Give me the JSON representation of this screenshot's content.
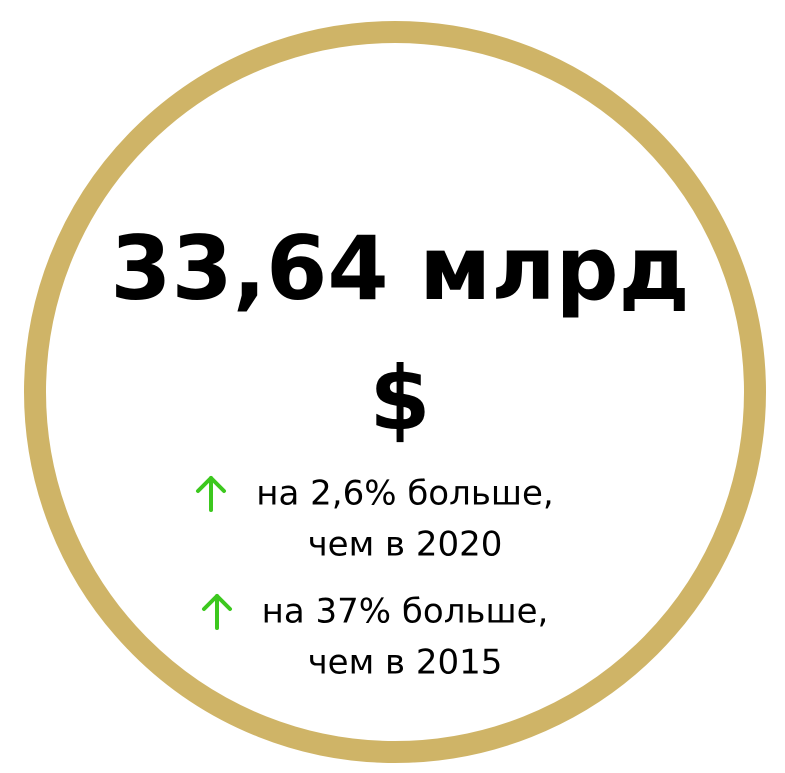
{
  "headline": {
    "value": "33,64 млрд",
    "unit": "$"
  },
  "notes": [
    {
      "line1": "на 2,6% больше,",
      "line2": "чем в 2020"
    },
    {
      "line1": "на 37% больше,",
      "line2": "чем в 2015"
    }
  ]
}
